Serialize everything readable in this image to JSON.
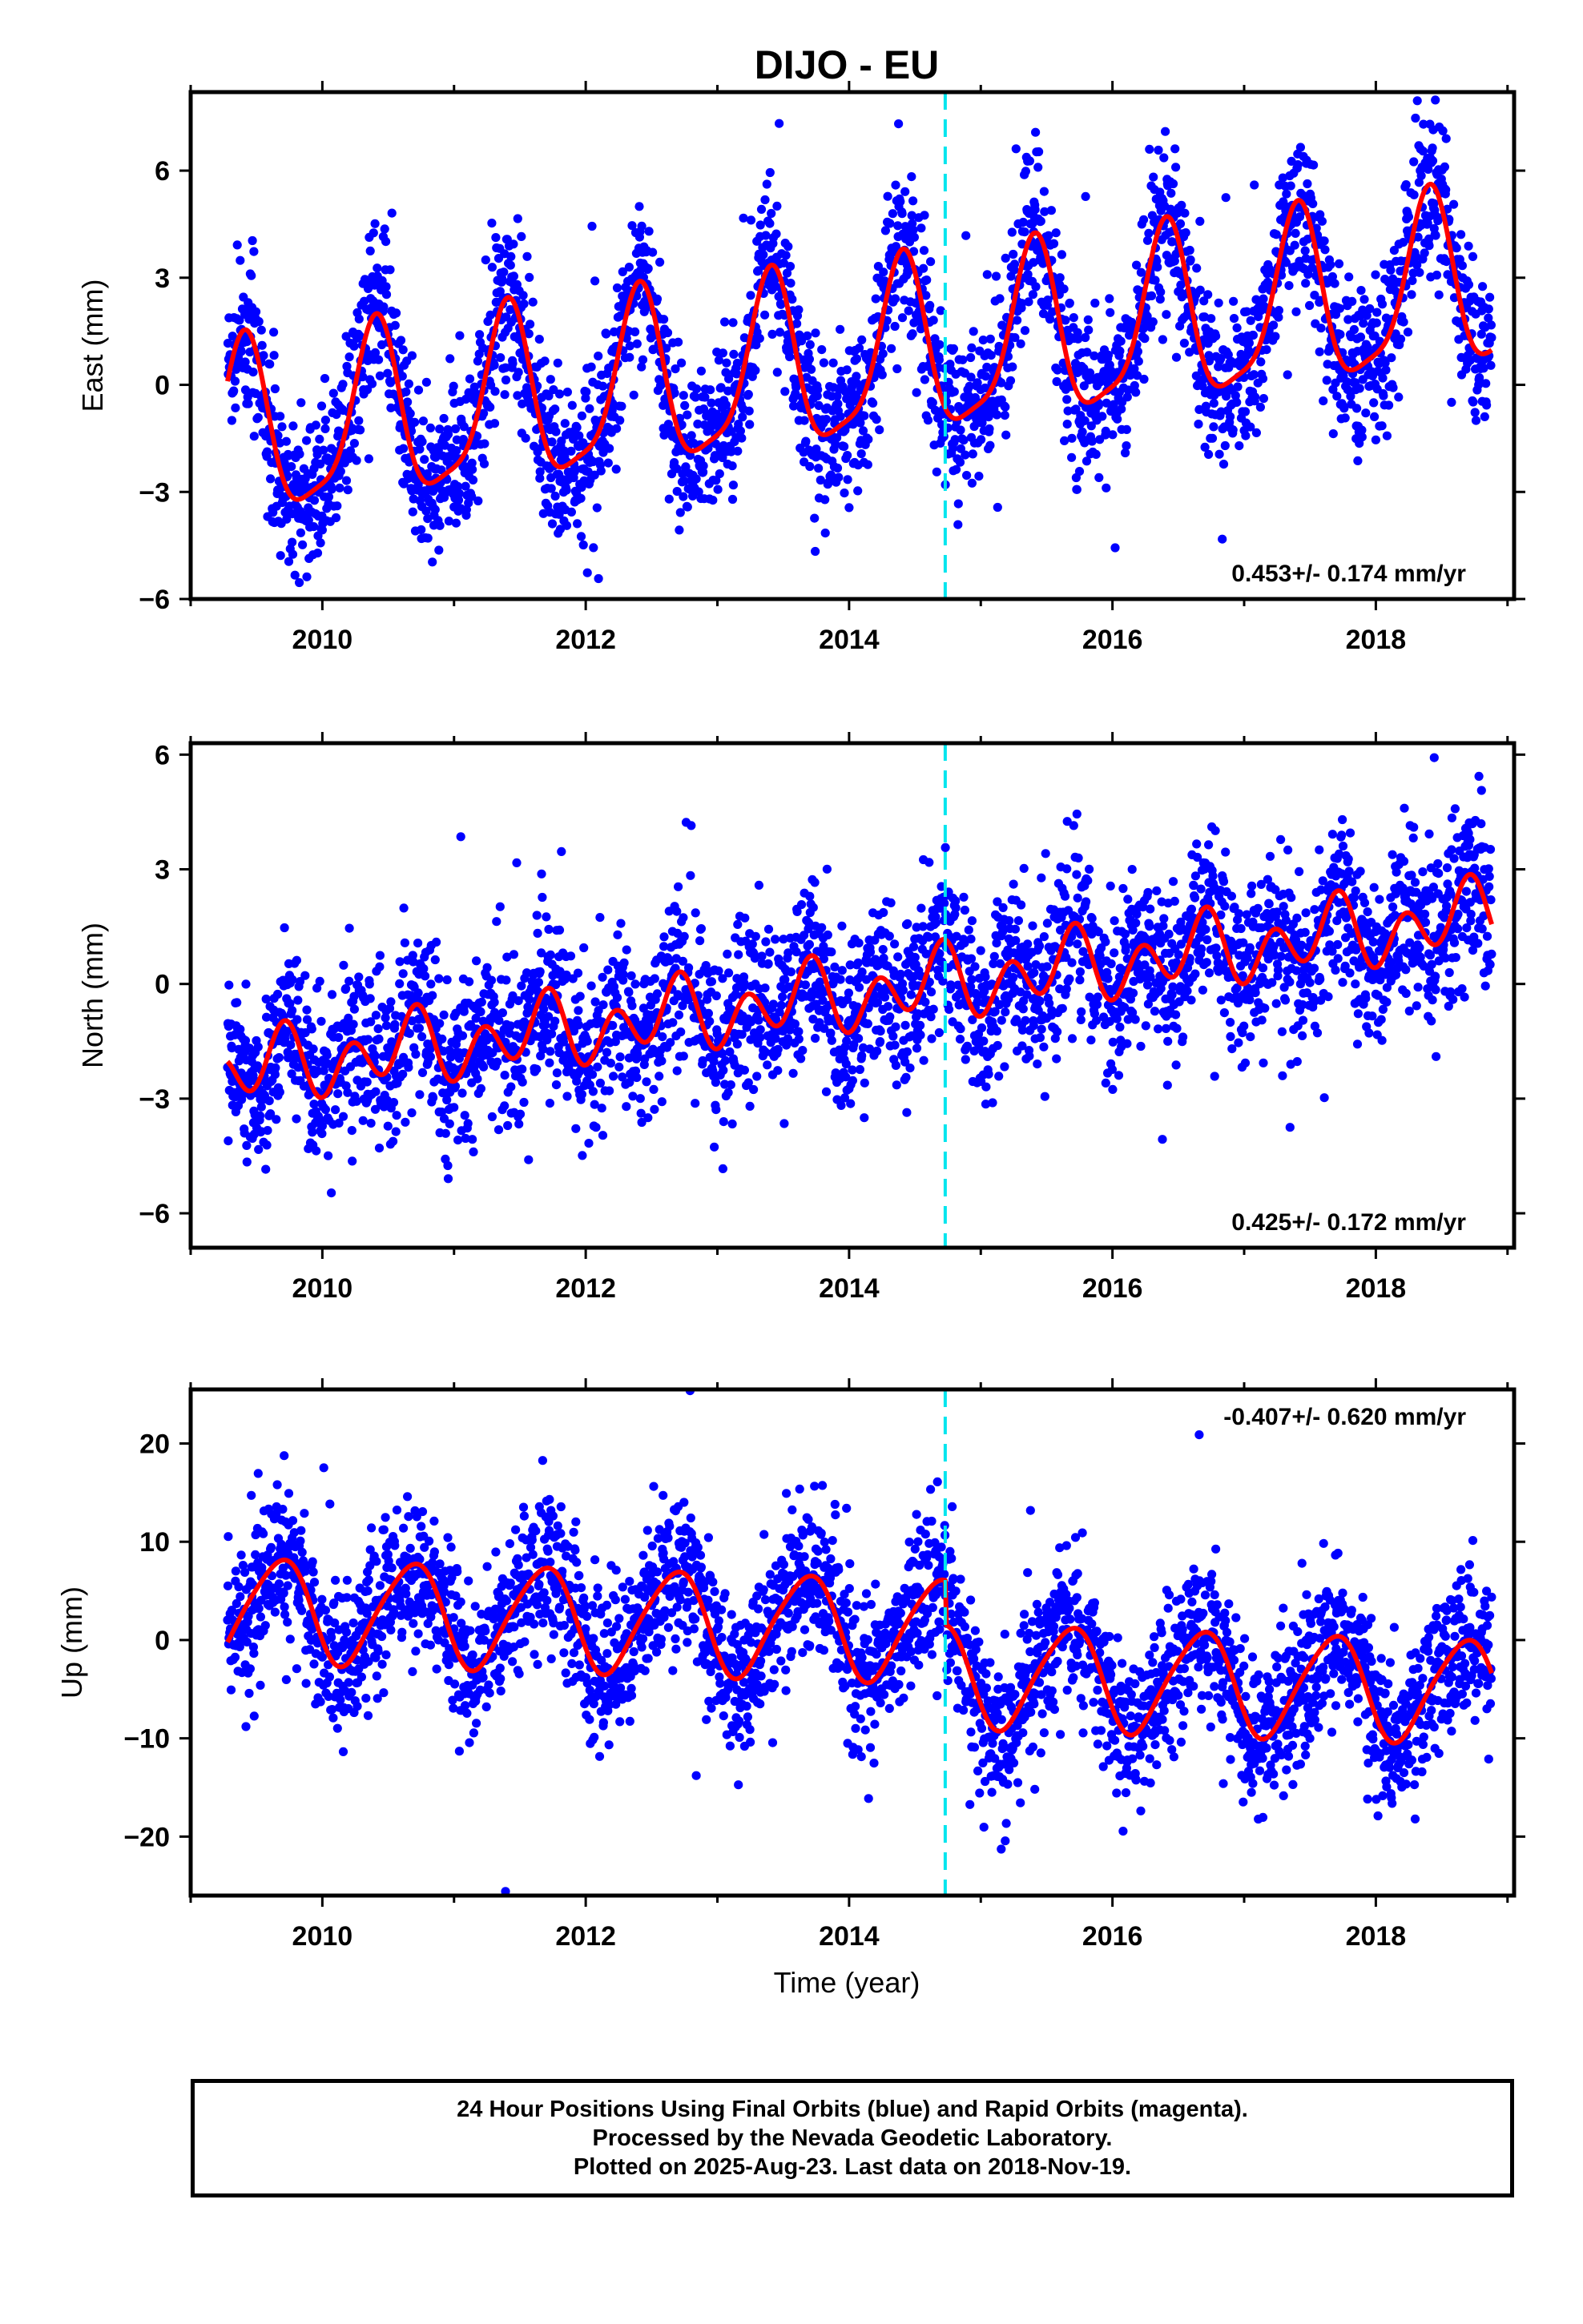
{
  "title": "DIJO - EU",
  "xlabel": "Time (year)",
  "colors": {
    "points": "#0000ff",
    "fit": "#ff0000",
    "event_line": "#00e5ee",
    "frame": "#000000"
  },
  "chart_data": [
    {
      "type": "scatter",
      "name": "east",
      "ylabel": "East (mm)",
      "xlim": [
        2009.0,
        2019.05
      ],
      "ylim": [
        -6,
        8.2
      ],
      "xticks": [
        2010,
        2012,
        2014,
        2016,
        2018
      ],
      "yticks": [
        -6,
        -3,
        0,
        3,
        6
      ],
      "event_line_x": 2014.73,
      "rate_text": "0.453+/- 0.174 mm/yr",
      "rate_position": "bottom-right",
      "data_range": [
        2009.28,
        2018.88
      ],
      "fit_params": {
        "offset": -1.5,
        "trend": 0.453,
        "annual_amp": 2.4,
        "annual_phase": 0.15,
        "semi_amp": 0.6,
        "semi_phase": 0.3,
        "noise": 1.1
      },
      "series": [
        {
          "name": "24 hour positions",
          "kind": "points",
          "marker": "dot"
        },
        {
          "name": "model fit",
          "kind": "line"
        }
      ]
    },
    {
      "type": "scatter",
      "name": "north",
      "ylabel": "North (mm)",
      "xlim": [
        2009.0,
        2019.05
      ],
      "ylim": [
        -6.9,
        6.3
      ],
      "xticks": [
        2010,
        2012,
        2014,
        2016,
        2018
      ],
      "yticks": [
        -6,
        -3,
        0,
        3,
        6
      ],
      "event_line_x": 2014.73,
      "rate_text": "0.425+/- 0.172 mm/yr",
      "rate_position": "bottom-right",
      "data_range": [
        2009.28,
        2018.88
      ],
      "fit_params": {
        "offset": -2.3,
        "trend": 0.425,
        "annual_amp": 0.45,
        "annual_phase": 0.4,
        "semi_amp": 0.75,
        "semi_phase": 0.1,
        "noise": 1.1
      },
      "series": [
        {
          "name": "24 hour positions",
          "kind": "points",
          "marker": "dot"
        },
        {
          "name": "model fit",
          "kind": "line"
        }
      ]
    },
    {
      "type": "scatter",
      "name": "up",
      "ylabel": "Up (mm)",
      "xlim": [
        2009.0,
        2019.05
      ],
      "ylim": [
        -26,
        25.5
      ],
      "xticks": [
        2010,
        2012,
        2014,
        2016,
        2018
      ],
      "yticks": [
        -20,
        -10,
        0,
        10,
        20
      ],
      "event_line_x": 2014.73,
      "rate_text": "-0.407+/- 0.620 mm/yr",
      "rate_position": "top-right",
      "data_range": [
        2009.28,
        2018.88
      ],
      "offset_step": {
        "x": 2014.73,
        "delta": -4.5
      },
      "fit_params": {
        "offset": 3.2,
        "trend": -0.407,
        "annual_amp": 5.2,
        "annual_phase": 0.42,
        "semi_amp": 0.7,
        "semi_phase": 0.2,
        "noise": 3.8
      },
      "series": [
        {
          "name": "24 hour positions",
          "kind": "points",
          "marker": "dot"
        },
        {
          "name": "model fit",
          "kind": "line"
        }
      ]
    }
  ],
  "footer": {
    "line1": "24 Hour Positions Using Final Orbits (blue) and Rapid Orbits (magenta).",
    "line2": "Processed by the Nevada Geodetic Laboratory.",
    "line3": "Plotted on 2025-Aug-23. Last data on 2018-Nov-19."
  }
}
